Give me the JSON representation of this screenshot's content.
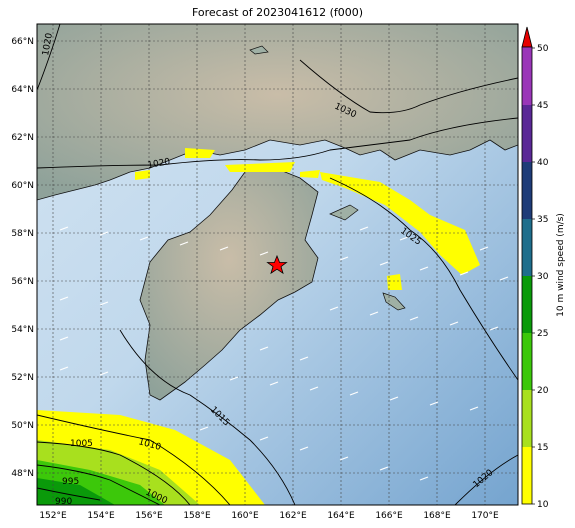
{
  "title": "Forecast of 2023041612 (f000)",
  "lon_ticks": [
    "152°E",
    "154°E",
    "156°E",
    "158°E",
    "160°E",
    "162°E",
    "164°E",
    "166°E",
    "168°E",
    "170°E"
  ],
  "lat_ticks": [
    "66°N",
    "64°N",
    "62°N",
    "60°N",
    "58°N",
    "56°N",
    "54°N",
    "52°N",
    "50°N",
    "48°N"
  ],
  "colorbar": {
    "label": "10 m wind speed (m/s)",
    "ticks": [
      "10",
      "15",
      "20",
      "25",
      "30",
      "35",
      "40",
      "45",
      "50"
    ],
    "colors": [
      "#ffff00",
      "#a8e01e",
      "#3cc80a",
      "#0a9a0a",
      "#1e6e8c",
      "#1e5a8c",
      "#1e3c78",
      "#5a2896",
      "#8c32b4"
    ],
    "extend_color": "#e60000"
  },
  "isobars": {
    "1020_top": "1020",
    "1020_mid": "1020",
    "1030": "1030",
    "1025": "1025",
    "1015": "1015",
    "1010": "1010",
    "1005": "1005",
    "1000": "1000",
    "995": "995",
    "990": "990",
    "1020_br": "1020"
  },
  "colors": {
    "sea": "#a9c8e3",
    "sea_deep": "#7aa8d2",
    "land": "#b8b8a8",
    "marker": "#ff0000"
  }
}
